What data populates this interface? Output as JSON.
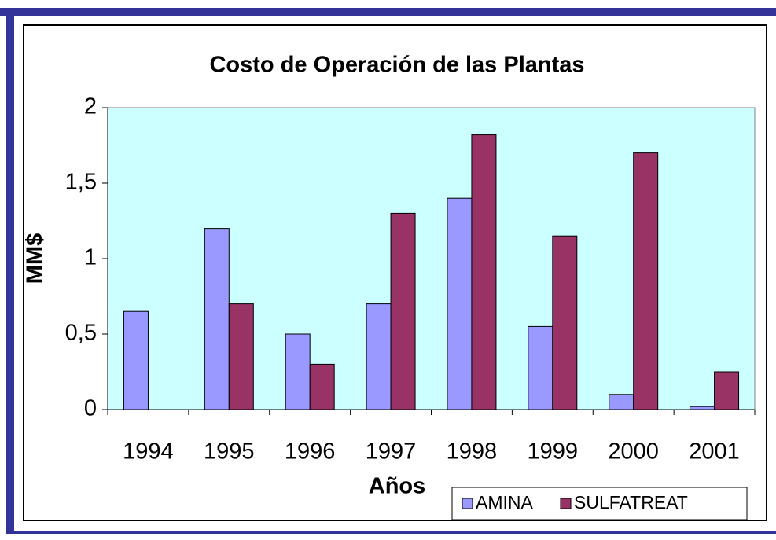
{
  "chart_data": {
    "type": "bar",
    "title": "Costo de Operación de las Plantas",
    "x_label": "Años",
    "y_label": "MM$",
    "categories": [
      "1994",
      "1995",
      "1996",
      "1997",
      "1998",
      "1999",
      "2000",
      "2001"
    ],
    "series": [
      {
        "name": "AMINA",
        "color": "#9999ff",
        "values": [
          0.65,
          1.2,
          0.5,
          0.7,
          1.4,
          0.55,
          0.1,
          0.02
        ]
      },
      {
        "name": "SULFATREAT",
        "color": "#993366",
        "values": [
          0,
          0.7,
          0.3,
          1.3,
          1.82,
          1.15,
          1.7,
          0.25
        ]
      }
    ],
    "ylim": [
      0,
      2
    ],
    "yticks": [
      0,
      {
        "value": 0.5,
        "label": "0,5"
      },
      1,
      {
        "value": 1.5,
        "label": "1,5"
      },
      2
    ],
    "legend": "bottom-right"
  }
}
